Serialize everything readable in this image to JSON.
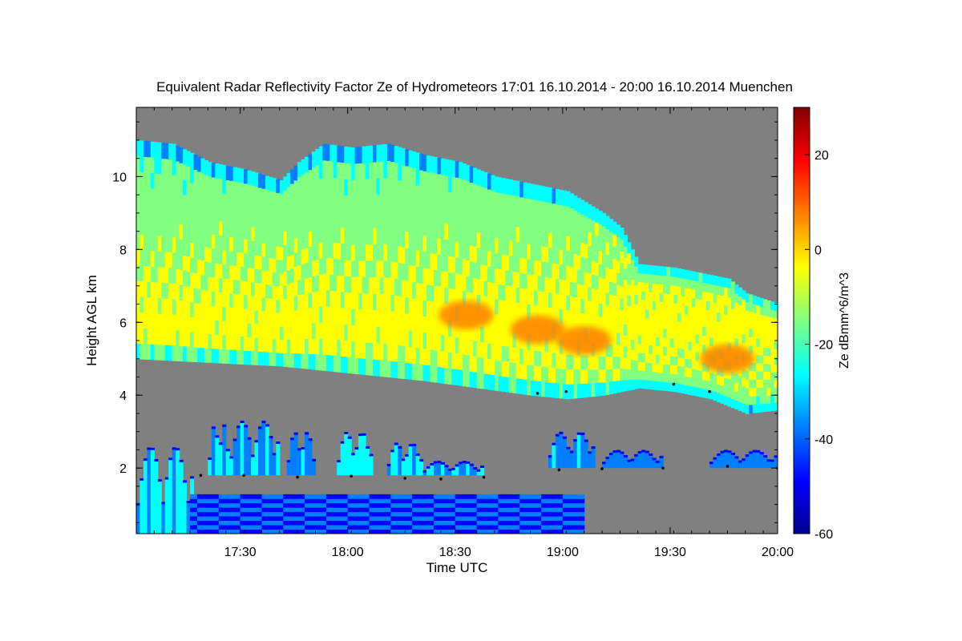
{
  "chart_data": {
    "type": "heatmap",
    "title": "Equivalent Radar Reflectivity Factor Ze of Hydrometeors   17:01 16.10.2014 - 20:00 16.10.2014 Muenchen",
    "xlabel": "Time UTC",
    "ylabel": "Height AGL km",
    "colorbar_label": "Ze dBmm^6/m^3",
    "x_range_minutes": [
      0,
      179
    ],
    "x_start_time": "17:01",
    "xticks": [
      {
        "label": "17:30",
        "minute": 29
      },
      {
        "label": "18:00",
        "minute": 59
      },
      {
        "label": "18:30",
        "minute": 89
      },
      {
        "label": "19:00",
        "minute": 119
      },
      {
        "label": "19:30",
        "minute": 149
      },
      {
        "label": "20:00",
        "minute": 179
      }
    ],
    "ylim": [
      0.2,
      11.9
    ],
    "yticks": [
      2,
      4,
      6,
      8,
      10
    ],
    "color_range": [
      -60,
      30
    ],
    "colorbar_ticks": [
      20,
      0,
      -20,
      -40,
      -60
    ],
    "background_color": "#808080",
    "colormap": [
      "#00008f",
      "#0000ff",
      "#0080ff",
      "#00ffff",
      "#80ff80",
      "#ffff00",
      "#ff8000",
      "#ff0000",
      "#800000"
    ],
    "upper_cloud": {
      "top_km": [
        [
          0,
          11.0
        ],
        [
          10,
          10.9
        ],
        [
          20,
          10.4
        ],
        [
          30,
          10.2
        ],
        [
          40,
          9.9
        ],
        [
          45,
          10.4
        ],
        [
          52,
          10.9
        ],
        [
          60,
          10.8
        ],
        [
          70,
          10.9
        ],
        [
          80,
          10.6
        ],
        [
          90,
          10.4
        ],
        [
          100,
          10.0
        ],
        [
          110,
          9.8
        ],
        [
          120,
          9.6
        ],
        [
          130,
          9.0
        ],
        [
          135,
          8.6
        ],
        [
          140,
          7.6
        ],
        [
          150,
          7.5
        ],
        [
          160,
          7.3
        ],
        [
          165,
          7.2
        ],
        [
          170,
          6.8
        ],
        [
          179,
          6.5
        ]
      ],
      "base_km": [
        [
          0,
          5.0
        ],
        [
          20,
          4.9
        ],
        [
          40,
          4.8
        ],
        [
          60,
          4.6
        ],
        [
          80,
          4.4
        ],
        [
          95,
          4.2
        ],
        [
          110,
          4.0
        ],
        [
          120,
          3.9
        ],
        [
          130,
          4.0
        ],
        [
          140,
          4.2
        ],
        [
          150,
          4.1
        ],
        [
          160,
          3.9
        ],
        [
          170,
          3.5
        ],
        [
          179,
          3.6
        ]
      ],
      "core_dbz": -5,
      "core_center_km": 6.0,
      "max_dbz_cells": [
        {
          "minute": 92,
          "height_km": 6.2,
          "dbz": 5
        },
        {
          "minute": 112,
          "height_km": 5.8,
          "dbz": 8
        },
        {
          "minute": 125,
          "height_km": 5.5,
          "dbz": 6
        },
        {
          "minute": 165,
          "height_km": 5.0,
          "dbz": 10
        }
      ]
    },
    "lower_cloud_cells": [
      {
        "start": 0,
        "end": 16,
        "base_km": 0.2,
        "top_km": 2.6,
        "dbz": -30
      },
      {
        "start": 20,
        "end": 26,
        "base_km": 1.8,
        "top_km": 3.2,
        "dbz": -30
      },
      {
        "start": 26,
        "end": 40,
        "base_km": 1.8,
        "top_km": 3.3,
        "dbz": -32
      },
      {
        "start": 42,
        "end": 50,
        "base_km": 1.8,
        "top_km": 3.0,
        "dbz": -34
      },
      {
        "start": 56,
        "end": 66,
        "base_km": 1.8,
        "top_km": 3.0,
        "dbz": -28
      },
      {
        "start": 70,
        "end": 80,
        "base_km": 1.8,
        "top_km": 2.7,
        "dbz": -30
      },
      {
        "start": 80,
        "end": 97,
        "base_km": 1.8,
        "top_km": 2.2,
        "dbz": -32
      },
      {
        "start": 115,
        "end": 128,
        "base_km": 2.0,
        "top_km": 3.0,
        "dbz": -34
      },
      {
        "start": 130,
        "end": 147,
        "base_km": 2.0,
        "top_km": 2.5,
        "dbz": -38
      },
      {
        "start": 160,
        "end": 179,
        "base_km": 2.0,
        "top_km": 2.5,
        "dbz": -38
      }
    ],
    "low_clutter": {
      "start": 15,
      "end": 125,
      "base_km": 0.2,
      "top_km": 1.2,
      "dbz": -45
    },
    "ceilometer_cloud_base_km": [
      [
        18,
        1.8
      ],
      [
        30,
        1.8
      ],
      [
        45,
        1.75
      ],
      [
        60,
        1.78
      ],
      [
        75,
        1.72
      ],
      [
        85,
        1.7
      ],
      [
        97,
        1.75
      ],
      [
        112,
        4.05
      ],
      [
        120,
        4.1
      ],
      [
        150,
        4.3
      ],
      [
        160,
        4.1
      ],
      [
        118,
        1.95
      ],
      [
        130,
        1.98
      ],
      [
        147,
        2.0
      ],
      [
        165,
        2.05
      ],
      [
        179,
        2.0
      ]
    ]
  }
}
